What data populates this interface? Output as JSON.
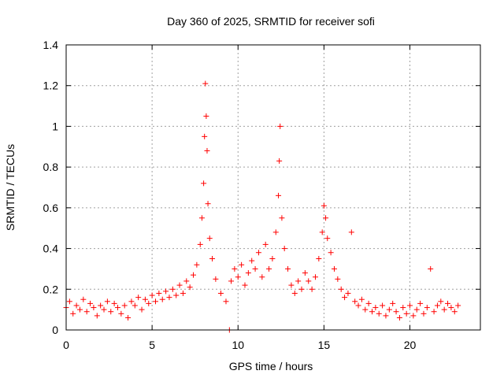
{
  "chart_data": {
    "type": "scatter",
    "title": "Day 360 of 2025, SRMTID for receiver sofi",
    "xlabel": "GPS time / hours",
    "ylabel": "SRMTID / TECUs",
    "xlim": [
      0,
      24.1
    ],
    "ylim": [
      0,
      1.4
    ],
    "x_ticks": [
      0,
      5,
      10,
      15,
      20
    ],
    "x_tick_labels": [
      "0",
      "5",
      "10",
      "15",
      "20"
    ],
    "y_ticks": [
      0,
      0.2,
      0.4,
      0.6,
      0.8,
      1,
      1.2,
      1.4
    ],
    "y_tick_labels": [
      "0",
      "0.2",
      "0.4",
      "0.6",
      "0.8",
      "1",
      "1.2",
      "1.4"
    ],
    "grid": true,
    "marker": "+",
    "color": "#ff0000",
    "series": [
      {
        "name": "SRMTID",
        "points": [
          [
            0.0,
            0.11
          ],
          [
            0.2,
            0.14
          ],
          [
            0.4,
            0.08
          ],
          [
            0.6,
            0.12
          ],
          [
            0.8,
            0.1
          ],
          [
            1.0,
            0.15
          ],
          [
            1.2,
            0.09
          ],
          [
            1.4,
            0.13
          ],
          [
            1.6,
            0.11
          ],
          [
            1.8,
            0.07
          ],
          [
            2.0,
            0.12
          ],
          [
            2.2,
            0.1
          ],
          [
            2.4,
            0.14
          ],
          [
            2.6,
            0.09
          ],
          [
            2.8,
            0.13
          ],
          [
            3.0,
            0.11
          ],
          [
            3.2,
            0.08
          ],
          [
            3.4,
            0.12
          ],
          [
            3.6,
            0.06
          ],
          [
            3.8,
            0.14
          ],
          [
            4.0,
            0.12
          ],
          [
            4.2,
            0.16
          ],
          [
            4.4,
            0.1
          ],
          [
            4.6,
            0.15
          ],
          [
            4.8,
            0.13
          ],
          [
            5.0,
            0.17
          ],
          [
            5.2,
            0.14
          ],
          [
            5.4,
            0.18
          ],
          [
            5.6,
            0.15
          ],
          [
            5.8,
            0.19
          ],
          [
            6.0,
            0.16
          ],
          [
            6.2,
            0.2
          ],
          [
            6.4,
            0.17
          ],
          [
            6.6,
            0.22
          ],
          [
            6.8,
            0.18
          ],
          [
            7.0,
            0.24
          ],
          [
            7.2,
            0.21
          ],
          [
            7.4,
            0.27
          ],
          [
            7.6,
            0.32
          ],
          [
            7.8,
            0.42
          ],
          [
            7.9,
            0.55
          ],
          [
            8.0,
            0.72
          ],
          [
            8.05,
            0.95
          ],
          [
            8.1,
            1.21
          ],
          [
            8.15,
            1.05
          ],
          [
            8.2,
            0.88
          ],
          [
            8.25,
            0.62
          ],
          [
            8.35,
            0.45
          ],
          [
            8.5,
            0.35
          ],
          [
            8.7,
            0.25
          ],
          [
            9.0,
            0.18
          ],
          [
            9.3,
            0.14
          ],
          [
            9.5,
            0.0
          ],
          [
            9.6,
            0.24
          ],
          [
            9.8,
            0.3
          ],
          [
            10.0,
            0.26
          ],
          [
            10.2,
            0.32
          ],
          [
            10.4,
            0.22
          ],
          [
            10.6,
            0.28
          ],
          [
            10.8,
            0.34
          ],
          [
            11.0,
            0.3
          ],
          [
            11.2,
            0.38
          ],
          [
            11.4,
            0.26
          ],
          [
            11.6,
            0.42
          ],
          [
            11.8,
            0.3
          ],
          [
            12.0,
            0.35
          ],
          [
            12.2,
            0.48
          ],
          [
            12.35,
            0.66
          ],
          [
            12.4,
            0.83
          ],
          [
            12.45,
            1.0
          ],
          [
            12.55,
            0.55
          ],
          [
            12.7,
            0.4
          ],
          [
            12.9,
            0.3
          ],
          [
            13.1,
            0.22
          ],
          [
            13.3,
            0.18
          ],
          [
            13.5,
            0.24
          ],
          [
            13.7,
            0.2
          ],
          [
            13.9,
            0.28
          ],
          [
            14.1,
            0.24
          ],
          [
            14.3,
            0.2
          ],
          [
            14.5,
            0.26
          ],
          [
            14.7,
            0.35
          ],
          [
            14.9,
            0.48
          ],
          [
            15.0,
            0.61
          ],
          [
            15.1,
            0.55
          ],
          [
            15.2,
            0.45
          ],
          [
            15.4,
            0.38
          ],
          [
            15.6,
            0.3
          ],
          [
            15.8,
            0.25
          ],
          [
            16.0,
            0.2
          ],
          [
            16.2,
            0.16
          ],
          [
            16.4,
            0.18
          ],
          [
            16.6,
            0.48
          ],
          [
            16.8,
            0.14
          ],
          [
            17.0,
            0.12
          ],
          [
            17.2,
            0.15
          ],
          [
            17.4,
            0.1
          ],
          [
            17.6,
            0.13
          ],
          [
            17.8,
            0.09
          ],
          [
            18.0,
            0.11
          ],
          [
            18.2,
            0.08
          ],
          [
            18.4,
            0.12
          ],
          [
            18.6,
            0.07
          ],
          [
            18.8,
            0.1
          ],
          [
            19.0,
            0.13
          ],
          [
            19.2,
            0.09
          ],
          [
            19.4,
            0.06
          ],
          [
            19.6,
            0.11
          ],
          [
            19.8,
            0.08
          ],
          [
            20.0,
            0.12
          ],
          [
            20.2,
            0.07
          ],
          [
            20.4,
            0.1
          ],
          [
            20.6,
            0.13
          ],
          [
            20.8,
            0.08
          ],
          [
            21.0,
            0.11
          ],
          [
            21.2,
            0.3
          ],
          [
            21.4,
            0.09
          ],
          [
            21.6,
            0.12
          ],
          [
            21.8,
            0.14
          ],
          [
            22.0,
            0.1
          ],
          [
            22.2,
            0.13
          ],
          [
            22.4,
            0.11
          ],
          [
            22.6,
            0.09
          ],
          [
            22.8,
            0.12
          ]
        ]
      }
    ]
  }
}
